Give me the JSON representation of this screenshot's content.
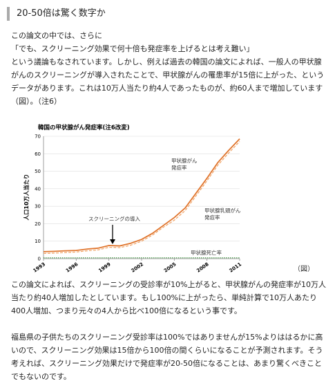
{
  "heading": "20-50倍は驚く数字か",
  "paragraphs": [
    [
      "この論文の中では、さらに",
      "「でも、スクリーニング効果で何十倍も発症率を上げるとは考え難い」",
      "という議論もなされています。しかし、例えば過去の韓国の論文によれば、一般人の甲状腺がんのスクリーニングが導入されたことで、甲状腺がんの罹患率が15倍に上がった、というデータがあります。これは10万人当たり約4人であったものが、約60人まで増加しています（図）。（注6）"
    ],
    [
      "この論文によれば、スクリーニングの受診率が10%上がると、甲状腺がんの発症率が10万人当たり約40人増加したとしています。もし100%に上がったら、単純計算で10万人あたり400人増加、つまり元々の4人から比べ100倍になるという事です。"
    ],
    [
      "福島県の子供たちのスクリーニング受診率は100%ではありませんが15%よりははるかに高いので、スクリーニング効果は15倍から100倍の間くらいになることが予測されます。そう考えれば、スクリーニング効果だけで発症率が20-50倍になることは、あまり驚くべきことでもないのです。"
    ]
  ],
  "caption": "（図）",
  "chart_data": {
    "type": "line",
    "title": "韓国の甲状腺がん発症率(注6改変)",
    "y_label": "人口10万人当たり",
    "annotation": "スクリーニングの導入",
    "x": [
      1993,
      1994,
      1995,
      1996,
      1997,
      1998,
      1999,
      2000,
      2001,
      2002,
      2003,
      2004,
      2005,
      2006,
      2007,
      2008,
      2009,
      2010,
      2011
    ],
    "series": [
      {
        "name": "甲状腺がん発症率",
        "color": "#e0742c",
        "style": "solid",
        "values": [
          4,
          4.2,
          4.5,
          4.7,
          5.5,
          6,
          7.5,
          7.3,
          8.8,
          11,
          14.5,
          19,
          23.5,
          29,
          37.5,
          46,
          55,
          62,
          68.5
        ]
      },
      {
        "name": "甲状腺乳頭がん発症率",
        "color": "#f0a060",
        "style": "dashed",
        "values": [
          3,
          3.2,
          3.5,
          3.8,
          4.5,
          5,
          6.5,
          6.3,
          7.7,
          10,
          13.5,
          18,
          22,
          27.5,
          36,
          44.5,
          53.5,
          60.5,
          67
        ]
      },
      {
        "name": "甲状腺死亡率",
        "color": "#4a9a4a",
        "style": "dotted",
        "values": [
          0.5,
          0.5,
          0.5,
          0.5,
          0.5,
          0.5,
          0.5,
          0.5,
          0.5,
          0.5,
          0.5,
          0.5,
          0.5,
          0.5,
          0.5,
          0.5,
          0.5,
          0.5,
          0.5
        ]
      }
    ],
    "xlim": [
      1993,
      2011
    ],
    "xticks": [
      1993,
      1996,
      1999,
      2002,
      2005,
      2008,
      2011
    ],
    "ylim": [
      0,
      70
    ],
    "yticks": [
      0,
      10,
      20,
      30,
      40,
      50,
      60,
      70
    ],
    "grid": true
  }
}
